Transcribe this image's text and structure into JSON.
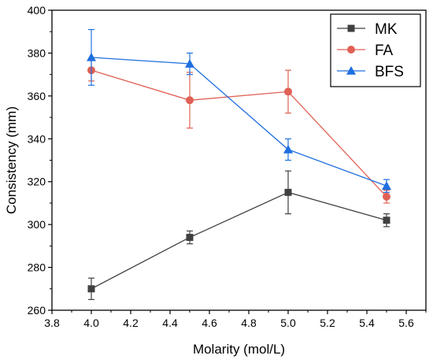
{
  "chart_data": {
    "type": "line",
    "title": "",
    "xlabel": "Molarity (mol/L)",
    "ylabel": "Consistency (mm)",
    "xlim": [
      3.8,
      5.7
    ],
    "ylim": [
      260,
      400
    ],
    "x_ticks": [
      "3.8",
      "4.0",
      "4.2",
      "4.4",
      "4.6",
      "4.8",
      "5.0",
      "5.2",
      "5.4",
      "5.6"
    ],
    "y_ticks": [
      "260",
      "280",
      "300",
      "320",
      "340",
      "360",
      "380",
      "400"
    ],
    "grid": false,
    "legend_position": "top-right",
    "series": [
      {
        "name": "MK",
        "color": "#404040",
        "marker": "square",
        "x": [
          4.0,
          4.5,
          5.0,
          5.5
        ],
        "values": [
          270,
          294,
          315,
          302
        ],
        "error": [
          5,
          3,
          10,
          3
        ]
      },
      {
        "name": "FA",
        "color": "#e06055",
        "marker": "circle",
        "x": [
          4.0,
          4.5,
          5.0,
          5.5
        ],
        "values": [
          372,
          358,
          362,
          313
        ],
        "error": [
          5,
          13,
          10,
          3
        ]
      },
      {
        "name": "BFS",
        "color": "#1f6fe0",
        "marker": "triangle",
        "x": [
          4.0,
          4.5,
          5.0,
          5.5
        ],
        "values": [
          378,
          375,
          335,
          318
        ],
        "error": [
          13,
          5,
          5,
          3
        ]
      }
    ]
  }
}
